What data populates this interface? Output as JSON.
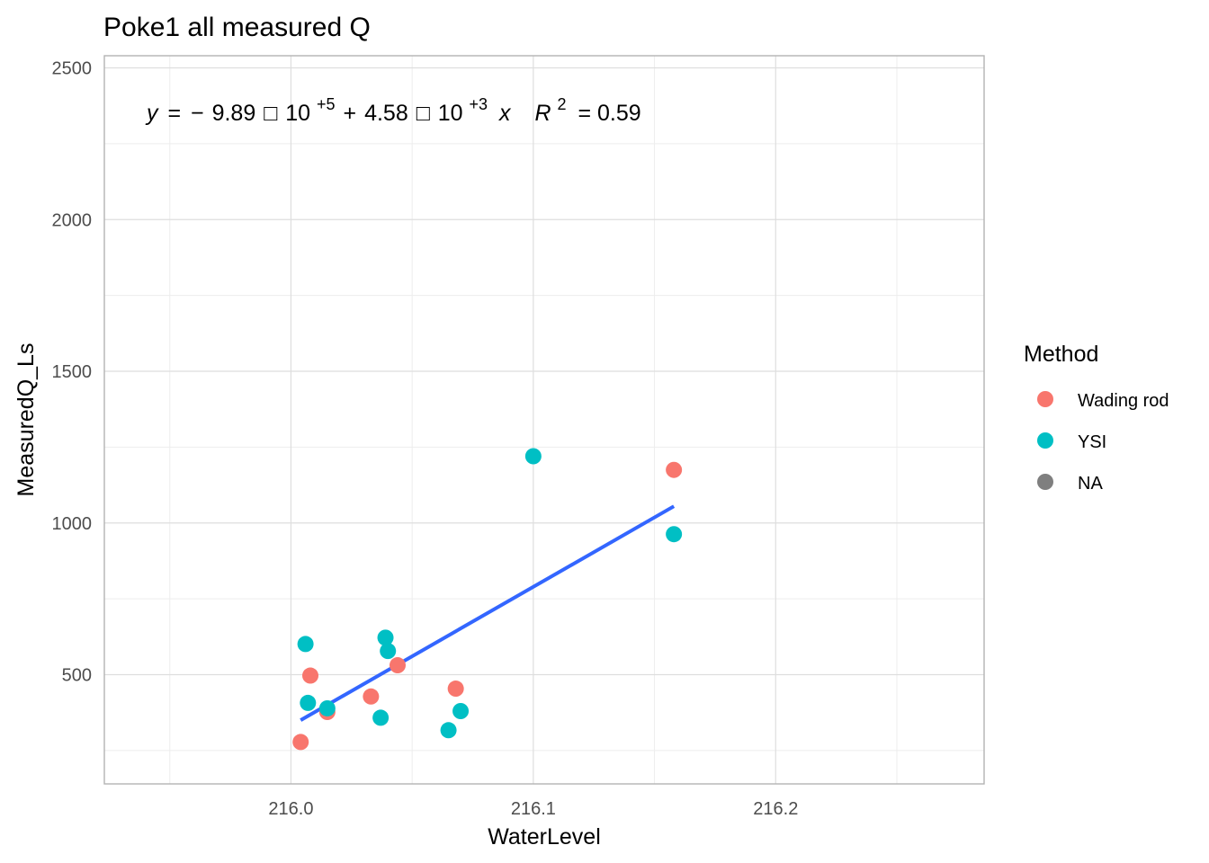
{
  "chart_data": {
    "type": "scatter",
    "title": "Poke1 all measured Q",
    "xlabel": "WaterLevel",
    "ylabel": "MeasuredQ_Ls",
    "xlim": [
      215.923,
      216.286
    ],
    "ylim": [
      140,
      2540
    ],
    "x_ticks": [
      "216.0",
      "216.1",
      "216.2"
    ],
    "y_ticks": [
      "500",
      "1000",
      "1500",
      "2000",
      "2500"
    ],
    "grid": true,
    "legend": {
      "title": "Method",
      "position": "right",
      "entries": [
        {
          "label": "Wading rod",
          "color": "#F8766D"
        },
        {
          "label": "YSI",
          "color": "#00BFC4"
        },
        {
          "label": "NA",
          "color": "#7F7F7F"
        }
      ]
    },
    "series": [
      {
        "name": "Wading rod",
        "color": "#F8766D",
        "points": [
          {
            "x": 216.004,
            "y": 278
          },
          {
            "x": 216.008,
            "y": 497
          },
          {
            "x": 216.015,
            "y": 377
          },
          {
            "x": 216.033,
            "y": 428
          },
          {
            "x": 216.044,
            "y": 531
          },
          {
            "x": 216.068,
            "y": 454
          },
          {
            "x": 216.158,
            "y": 1175
          }
        ]
      },
      {
        "name": "YSI",
        "color": "#00BFC4",
        "points": [
          {
            "x": 216.006,
            "y": 601
          },
          {
            "x": 216.007,
            "y": 407
          },
          {
            "x": 216.015,
            "y": 389
          },
          {
            "x": 216.037,
            "y": 358
          },
          {
            "x": 216.039,
            "y": 622
          },
          {
            "x": 216.04,
            "y": 578
          },
          {
            "x": 216.065,
            "y": 317
          },
          {
            "x": 216.07,
            "y": 380
          },
          {
            "x": 216.1,
            "y": 1220
          },
          {
            "x": 216.158,
            "y": 963
          }
        ]
      }
    ],
    "fit_line": {
      "color": "#3366FF",
      "x": [
        216.004,
        216.158
      ],
      "y": [
        350,
        1055
      ]
    },
    "annotation": {
      "y_var": "y",
      "equals": "=",
      "minus": "−",
      "intercept_mantissa": "9.89",
      "box": "□",
      "ten": "10",
      "intercept_exp": "+5",
      "plus": "+",
      "slope_mantissa": "4.58",
      "slope_exp": "+3",
      "x_var": "x",
      "r_var": "R",
      "r_exp": "2",
      "r_equals": "= 0.59"
    }
  }
}
